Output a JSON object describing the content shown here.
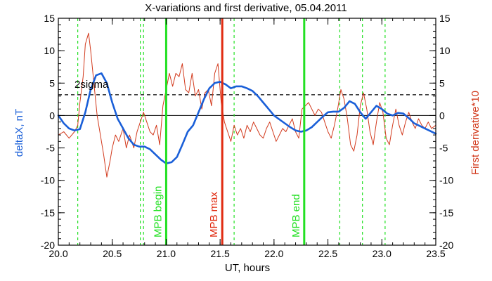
{
  "chart_data": {
    "type": "line",
    "title": "X-variations and first derivative, 05.04.2011",
    "xlabel": "UT, hours",
    "ylabel_left": "deltaX, nT",
    "ylabel_right": "First derivative*10",
    "xlim": [
      20.0,
      23.5
    ],
    "ylim_left": [
      -20,
      15
    ],
    "ylim_right": [
      -20,
      15
    ],
    "x_ticks": [
      "20.0",
      "20.5",
      "21.0",
      "21.5",
      "22.0",
      "22.5",
      "23.0",
      "23.5"
    ],
    "x_tick_values": [
      20.0,
      20.5,
      21.0,
      21.5,
      22.0,
      22.5,
      23.0,
      23.5
    ],
    "y_ticks_left": [
      "15",
      "10",
      "5",
      "0",
      "-5",
      "-10",
      "-15",
      "-20"
    ],
    "y_ticks_right": [
      "15",
      "10",
      "5",
      "0",
      "-5",
      "-10",
      "-15",
      "-20"
    ],
    "y_tick_values": [
      15,
      10,
      5,
      0,
      -5,
      -10,
      -15,
      -20
    ],
    "grid": false,
    "colors": {
      "deltaX": "#1a5fd8",
      "derivative": "#d23a1d",
      "mpb": "#22e022",
      "mpb_max": "#e02a10",
      "dashed_green": "#22e022",
      "sigma": "#000000"
    },
    "sigma_level": 3.2,
    "sigma_label": "2sigma",
    "vertical_markers": [
      {
        "x": 21.0,
        "label": "MPB begin",
        "kind": "mpb"
      },
      {
        "x": 21.52,
        "label": "MPB max",
        "kind": "mpb_max"
      },
      {
        "x": 22.28,
        "label": "MPB end",
        "kind": "mpb"
      }
    ],
    "dashed_markers": [
      20.18,
      20.76,
      20.79,
      21.63,
      22.61,
      22.82,
      23.03
    ],
    "series": [
      {
        "key": "deltaX",
        "axis": "left",
        "x": [
          20.0,
          20.05,
          20.1,
          20.15,
          20.2,
          20.25,
          20.3,
          20.35,
          20.4,
          20.45,
          20.5,
          20.55,
          20.6,
          20.65,
          20.7,
          20.75,
          20.8,
          20.85,
          20.9,
          20.95,
          21.0,
          21.05,
          21.1,
          21.15,
          21.2,
          21.25,
          21.3,
          21.35,
          21.4,
          21.45,
          21.5,
          21.55,
          21.6,
          21.65,
          21.7,
          21.75,
          21.8,
          21.85,
          21.9,
          21.95,
          22.0,
          22.05,
          22.1,
          22.15,
          22.2,
          22.25,
          22.3,
          22.35,
          22.4,
          22.45,
          22.5,
          22.55,
          22.6,
          22.65,
          22.7,
          22.75,
          22.8,
          22.85,
          22.9,
          22.95,
          23.0,
          23.05,
          23.1,
          23.15,
          23.2,
          23.25,
          23.3,
          23.35,
          23.4,
          23.45,
          23.5
        ],
        "y": [
          0.0,
          -1.2,
          -2.0,
          -2.3,
          -2.1,
          0.5,
          4.0,
          6.2,
          6.5,
          5.0,
          2.0,
          -0.5,
          -2.0,
          -3.5,
          -4.5,
          -4.8,
          -4.8,
          -5.2,
          -6.0,
          -6.8,
          -7.4,
          -7.2,
          -6.4,
          -4.5,
          -2.5,
          -1.5,
          0.5,
          2.5,
          4.2,
          5.0,
          5.2,
          4.8,
          4.2,
          4.5,
          4.5,
          4.2,
          3.8,
          3.0,
          2.0,
          1.0,
          0.0,
          -0.6,
          -1.2,
          -1.8,
          -2.3,
          -2.5,
          -2.3,
          -1.8,
          -1.0,
          -0.2,
          0.5,
          0.6,
          0.6,
          1.2,
          2.2,
          1.8,
          0.5,
          -0.5,
          0.5,
          1.5,
          1.0,
          0.3,
          0.0,
          0.4,
          0.3,
          -0.4,
          -1.2,
          -1.6,
          -2.0,
          -2.4,
          -2.8
        ]
      },
      {
        "key": "derivative",
        "axis": "right",
        "x": [
          20.0,
          20.05,
          20.1,
          20.15,
          20.18,
          20.2,
          20.23,
          20.25,
          20.28,
          20.3,
          20.33,
          20.36,
          20.39,
          20.42,
          20.45,
          20.48,
          20.5,
          20.53,
          20.56,
          20.6,
          20.63,
          20.66,
          20.7,
          20.73,
          20.76,
          20.79,
          20.82,
          20.85,
          20.88,
          20.91,
          20.94,
          20.97,
          21.0,
          21.03,
          21.06,
          21.09,
          21.12,
          21.15,
          21.18,
          21.21,
          21.24,
          21.27,
          21.3,
          21.33,
          21.36,
          21.39,
          21.42,
          21.45,
          21.48,
          21.51,
          21.54,
          21.57,
          21.6,
          21.63,
          21.66,
          21.69,
          21.72,
          21.75,
          21.78,
          21.81,
          21.84,
          21.87,
          21.9,
          21.93,
          21.96,
          21.99,
          22.02,
          22.05,
          22.08,
          22.11,
          22.14,
          22.17,
          22.2,
          22.23,
          22.26,
          22.29,
          22.32,
          22.35,
          22.38,
          22.41,
          22.44,
          22.47,
          22.5,
          22.53,
          22.56,
          22.59,
          22.62,
          22.65,
          22.68,
          22.71,
          22.74,
          22.77,
          22.8,
          22.83,
          22.86,
          22.89,
          22.92,
          22.95,
          22.98,
          23.01,
          23.04,
          23.07,
          23.1,
          23.13,
          23.16,
          23.19,
          23.22,
          23.25,
          23.28,
          23.31,
          23.34,
          23.37,
          23.4,
          23.43,
          23.46,
          23.5
        ],
        "y": [
          -3.0,
          -2.5,
          -3.5,
          -2.5,
          -1.5,
          2.0,
          6.0,
          11.0,
          12.7,
          10.0,
          5.0,
          0.0,
          -3.0,
          -6.0,
          -9.5,
          -7.0,
          -5.0,
          -3.0,
          -4.0,
          -2.0,
          -5.0,
          -3.0,
          -5.0,
          -2.5,
          -1.0,
          0.5,
          -1.0,
          -2.5,
          -3.0,
          -1.5,
          -4.5,
          1.5,
          4.0,
          6.5,
          4.5,
          6.5,
          6.0,
          8.0,
          4.0,
          3.5,
          6.5,
          3.0,
          4.0,
          1.0,
          3.5,
          4.0,
          1.5,
          6.5,
          8.0,
          2.0,
          -1.0,
          -2.5,
          -4.0,
          -1.5,
          -3.0,
          -2.0,
          -3.5,
          -1.5,
          -2.5,
          -1.0,
          -2.0,
          -3.0,
          -3.5,
          -2.0,
          -1.0,
          -2.5,
          -4.0,
          -3.0,
          -2.0,
          -2.5,
          -1.5,
          -0.5,
          -2.5,
          -3.5,
          1.0,
          1.5,
          2.0,
          1.0,
          0.0,
          1.0,
          0.5,
          -1.0,
          -2.5,
          -3.5,
          -1.5,
          1.0,
          4.0,
          2.5,
          -0.5,
          -4.5,
          -5.5,
          -3.0,
          1.5,
          3.5,
          1.0,
          -2.5,
          -4.5,
          -1.0,
          2.0,
          0.5,
          -3.5,
          -4.5,
          -1.5,
          1.0,
          -1.5,
          -3.0,
          -1.0,
          0.5,
          -1.0,
          -2.0,
          -0.5,
          -1.5,
          -2.0,
          -1.0,
          -2.0,
          -1.5
        ]
      }
    ]
  }
}
